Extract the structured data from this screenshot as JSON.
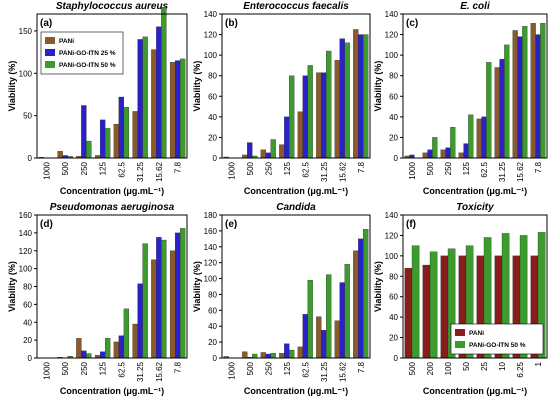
{
  "chart_data": [
    {
      "type": "bar",
      "title": "Staphylococcus aureus",
      "panel_label": "(a)",
      "categories": [
        "1000",
        "500",
        "250",
        "125",
        "62.5",
        "31.25",
        "15.62",
        "7.8"
      ],
      "series": [
        {
          "name": "PANi",
          "color": "#8b5a2b",
          "values": [
            1,
            8,
            2,
            3,
            40,
            55,
            128,
            113
          ]
        },
        {
          "name": "PANi-GO-ITN 25 %",
          "color": "#2a22c8",
          "values": [
            0,
            3,
            62,
            45,
            72,
            140,
            155,
            115
          ]
        },
        {
          "name": "PANi-GO-ITN 50 %",
          "color": "#3d9a2e",
          "values": [
            0,
            2,
            20,
            35,
            60,
            143,
            178,
            117
          ]
        }
      ],
      "ylim": [
        0,
        170
      ],
      "yticks": [
        0,
        50,
        100,
        150
      ],
      "legend": "upper-left",
      "xlabel": "Concentration (μg.mL⁻¹)",
      "ylabel": "Viability (%)"
    },
    {
      "type": "bar",
      "title": "Enterococcus faecalis",
      "panel_label": "(b)",
      "categories": [
        "1000",
        "500",
        "250",
        "125",
        "62.5",
        "31.25",
        "15.62",
        "7.8"
      ],
      "series": [
        {
          "color": "#8b5a2b",
          "values": [
            1,
            3,
            8,
            13,
            45,
            83,
            95,
            125
          ]
        },
        {
          "color": "#2a22c8",
          "values": [
            0,
            15,
            5,
            40,
            80,
            83,
            116,
            120
          ]
        },
        {
          "color": "#3d9a2e",
          "values": [
            0,
            2,
            18,
            80,
            90,
            104,
            112,
            120
          ]
        }
      ],
      "ylim": [
        0,
        140
      ],
      "yticks": [
        0,
        20,
        40,
        60,
        80,
        100,
        120,
        140
      ],
      "xlabel": "Concentration (μg.mL⁻¹)",
      "ylabel": "Viability (%)"
    },
    {
      "type": "bar",
      "title": "E. coli",
      "panel_label": "(c)",
      "categories": [
        "1000",
        "500",
        "250",
        "125",
        "62.5",
        "31.25",
        "15.62",
        "7.8"
      ],
      "series": [
        {
          "color": "#8b5a2b",
          "values": [
            2,
            5,
            8,
            5,
            38,
            88,
            124,
            131
          ]
        },
        {
          "color": "#2a22c8",
          "values": [
            3,
            8,
            10,
            14,
            40,
            96,
            118,
            120
          ]
        },
        {
          "color": "#3d9a2e",
          "values": [
            0,
            20,
            30,
            42,
            93,
            110,
            128,
            131
          ]
        }
      ],
      "ylim": [
        0,
        140
      ],
      "yticks": [
        0,
        20,
        40,
        60,
        80,
        100,
        120,
        140
      ],
      "xlabel": "Concentration (μg.mL⁻¹)",
      "ylabel": "Viability (%)"
    },
    {
      "type": "bar",
      "title": "Pseudomonas aeruginosa",
      "panel_label": "(d)",
      "categories": [
        "1000",
        "500",
        "250",
        "125",
        "62.5",
        "31.25",
        "15.62",
        "7.8"
      ],
      "series": [
        {
          "color": "#8b5a2b",
          "values": [
            0,
            1,
            22,
            3,
            18,
            38,
            110,
            120
          ]
        },
        {
          "color": "#2a22c8",
          "values": [
            0,
            0,
            8,
            7,
            25,
            83,
            135,
            140
          ]
        },
        {
          "color": "#3d9a2e",
          "values": [
            0,
            2,
            5,
            22,
            55,
            128,
            132,
            145
          ]
        }
      ],
      "ylim": [
        0,
        160
      ],
      "yticks": [
        0,
        20,
        40,
        60,
        80,
        100,
        120,
        140,
        160
      ],
      "xlabel": "Concentration (μg.mL⁻¹)",
      "ylabel": "Viability (%)"
    },
    {
      "type": "bar",
      "title": "Candida",
      "panel_label": "(e)",
      "categories": [
        "1000",
        "500",
        "250",
        "125",
        "62.5",
        "31.25",
        "15.62",
        "7.8"
      ],
      "series": [
        {
          "color": "#8b5a2b",
          "values": [
            2,
            8,
            7,
            6,
            14,
            52,
            47,
            135
          ]
        },
        {
          "color": "#2a22c8",
          "values": [
            0,
            1,
            5,
            18,
            55,
            35,
            95,
            150
          ]
        },
        {
          "color": "#3d9a2e",
          "values": [
            0,
            5,
            6,
            10,
            98,
            105,
            118,
            162
          ]
        }
      ],
      "ylim": [
        0,
        180
      ],
      "yticks": [
        0,
        20,
        40,
        60,
        80,
        100,
        120,
        140,
        160,
        180
      ],
      "xlabel": "Concentration (μg.mL⁻¹)",
      "ylabel": "Viability (%)"
    },
    {
      "type": "bar",
      "title": "Toxicity",
      "panel_label": "(f)",
      "categories": [
        "500",
        "200",
        "100",
        "50",
        "25",
        "10",
        "6.25",
        "1"
      ],
      "series": [
        {
          "name": "PANi",
          "color": "#8b1c1c",
          "values": [
            88,
            91,
            100,
            100,
            100,
            100,
            100,
            100
          ]
        },
        {
          "name": "PANi-GO-ITN 50 %",
          "color": "#3d9a2e",
          "values": [
            110,
            104,
            107,
            110,
            118,
            122,
            120,
            123
          ]
        }
      ],
      "ylim": [
        0,
        140
      ],
      "yticks": [
        0,
        20,
        40,
        60,
        80,
        100,
        120,
        140
      ],
      "legend": "lower-right",
      "xlabel": "Concentration (μg.mL⁻¹)",
      "ylabel": "Viability (%)"
    }
  ]
}
